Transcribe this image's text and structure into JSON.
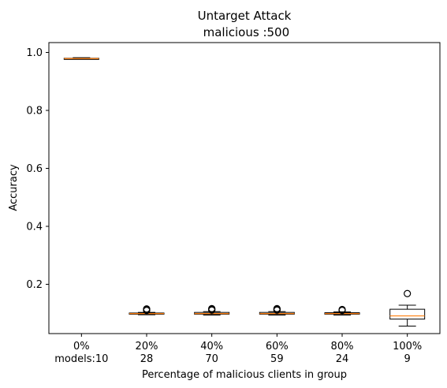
{
  "chart_data": {
    "type": "box",
    "title_line1": "Untarget Attack",
    "title_line2": " malicious :500",
    "xlabel": "Percentage of malicious clients in group",
    "ylabel": "Accuracy",
    "ylim": [
      0.03,
      1.034
    ],
    "yticks": [
      "0.2",
      "0.4",
      "0.6",
      "0.8",
      "1.0"
    ],
    "ytick_values": [
      0.2,
      0.4,
      0.6,
      0.8,
      1.0
    ],
    "categories": [
      {
        "line1": "0%",
        "line2": "models:10"
      },
      {
        "line1": "20%",
        "line2": "28"
      },
      {
        "line1": "40%",
        "line2": "70"
      },
      {
        "line1": "60%",
        "line2": "59"
      },
      {
        "line1": "80%",
        "line2": "24"
      },
      {
        "line1": "100%",
        "line2": "9"
      }
    ],
    "boxes": [
      {
        "whislo": 0.977,
        "q1": 0.978,
        "med": 0.979,
        "q3": 0.98,
        "whishi": 0.982,
        "fliers": []
      },
      {
        "whislo": 0.095,
        "q1": 0.097,
        "med": 0.099,
        "q3": 0.101,
        "whishi": 0.103,
        "fliers": [
          0.11,
          0.113,
          0.115
        ]
      },
      {
        "whislo": 0.094,
        "q1": 0.097,
        "med": 0.099,
        "q3": 0.103,
        "whishi": 0.106,
        "fliers": [
          0.111,
          0.114,
          0.116
        ]
      },
      {
        "whislo": 0.094,
        "q1": 0.097,
        "med": 0.099,
        "q3": 0.103,
        "whishi": 0.106,
        "fliers": [
          0.111,
          0.114,
          0.116
        ]
      },
      {
        "whislo": 0.094,
        "q1": 0.097,
        "med": 0.099,
        "q3": 0.102,
        "whishi": 0.105,
        "fliers": [
          0.11,
          0.113
        ]
      },
      {
        "whislo": 0.056,
        "q1": 0.08,
        "med": 0.091,
        "q3": 0.114,
        "whishi": 0.128,
        "fliers": [
          0.168
        ]
      }
    ],
    "colors": {
      "box": "#000000",
      "median": "#ff7f0e",
      "flier": "#000000"
    }
  }
}
